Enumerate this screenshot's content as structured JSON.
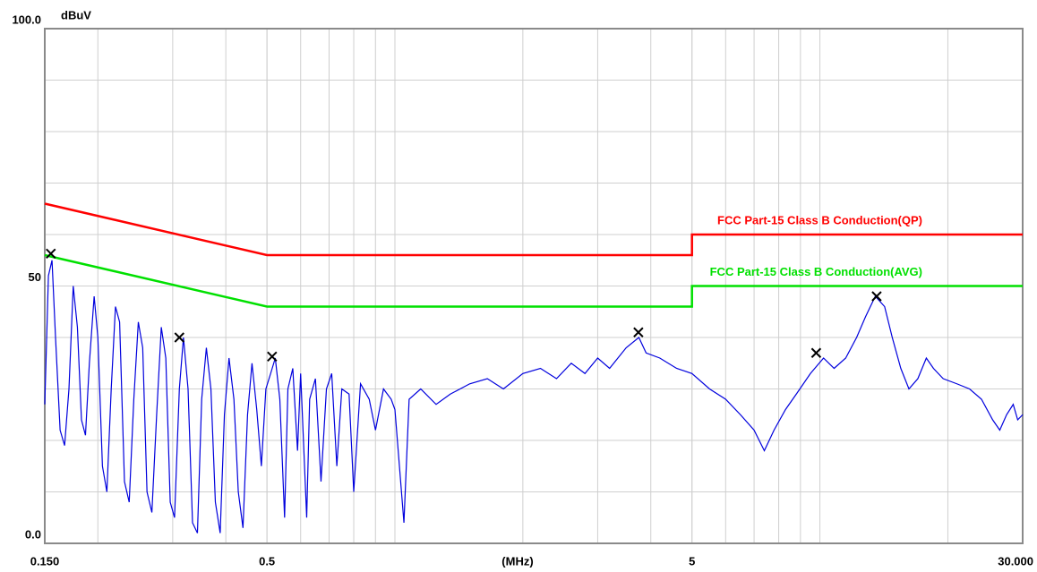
{
  "chart_data": {
    "type": "line",
    "y_unit": "dBuV",
    "x_label": "(MHz)",
    "log_x": true,
    "grid": true,
    "xlim": [
      0.15,
      30
    ],
    "xticks": [
      {
        "value": 0.15,
        "label": "0.150"
      },
      0.5,
      5,
      {
        "value": 30,
        "label": "30.000"
      }
    ],
    "ylim": [
      0,
      100
    ],
    "yticks": [
      {
        "value": 0,
        "label": "0.0"
      },
      50,
      {
        "value": 100,
        "label": "100.0"
      }
    ],
    "series": [
      {
        "name": "FCC Part-15 Class B Conduction(QP)",
        "color": "#ff0000",
        "x": [
          0.15,
          0.5,
          5,
          5,
          30
        ],
        "values": [
          66,
          56,
          56,
          60,
          60
        ]
      },
      {
        "name": "FCC Part-15 Class B Conduction(AVG)",
        "color": "#00e000",
        "x": [
          0.15,
          0.5,
          5,
          5,
          30
        ],
        "values": [
          56,
          46,
          46,
          50,
          50
        ]
      },
      {
        "color": "#0000dd",
        "x": [
          0.15,
          0.153,
          0.156,
          0.159,
          0.163,
          0.167,
          0.171,
          0.175,
          0.179,
          0.183,
          0.187,
          0.191,
          0.196,
          0.2,
          0.205,
          0.21,
          0.215,
          0.22,
          0.225,
          0.231,
          0.237,
          0.243,
          0.249,
          0.255,
          0.261,
          0.268,
          0.275,
          0.282,
          0.289,
          0.296,
          0.303,
          0.311,
          0.318,
          0.326,
          0.334,
          0.343,
          0.351,
          0.36,
          0.369,
          0.378,
          0.388,
          0.397,
          0.407,
          0.418,
          0.428,
          0.439,
          0.45,
          0.461,
          0.473,
          0.485,
          0.497,
          0.51,
          0.523,
          0.536,
          0.55,
          0.56,
          0.575,
          0.59,
          0.6,
          0.62,
          0.63,
          0.65,
          0.67,
          0.69,
          0.71,
          0.73,
          0.75,
          0.78,
          0.8,
          0.83,
          0.87,
          0.9,
          0.94,
          0.98,
          1.0,
          1.05,
          1.08,
          1.15,
          1.25,
          1.35,
          1.5,
          1.65,
          1.8,
          2.0,
          2.2,
          2.4,
          2.6,
          2.8,
          3.0,
          3.2,
          3.5,
          3.75,
          3.9,
          4.2,
          4.6,
          5.0,
          5.5,
          6.0,
          6.5,
          7.0,
          7.4,
          7.8,
          8.3,
          8.8,
          9.5,
          10.2,
          10.8,
          11.5,
          12.2,
          12.8,
          13.5,
          14.2,
          14.8,
          15.5,
          16.2,
          17,
          17.8,
          18.5,
          19.5,
          21,
          22.5,
          24,
          25.5,
          26.5,
          27.5,
          28.5,
          29.2,
          30
        ],
        "values": [
          27,
          52,
          55,
          40,
          22,
          19,
          30,
          50,
          42,
          24,
          21,
          35,
          48,
          40,
          15,
          10,
          30,
          46,
          43,
          12,
          8,
          28,
          43,
          38,
          10,
          6,
          25,
          42,
          36,
          8,
          5,
          30,
          40,
          30,
          4,
          2,
          28,
          38,
          30,
          8,
          2,
          25,
          36,
          28,
          10,
          3,
          25,
          35,
          26,
          15,
          30,
          33,
          36,
          28,
          5,
          30,
          34,
          18,
          33,
          5,
          28,
          32,
          12,
          30,
          33,
          15,
          30,
          29,
          10,
          31,
          28,
          22,
          30,
          28,
          26,
          4,
          28,
          30,
          27,
          29,
          31,
          32,
          30,
          33,
          34,
          32,
          35,
          33,
          36,
          34,
          38,
          40,
          37,
          36,
          34,
          33,
          30,
          28,
          25,
          22,
          18,
          22,
          26,
          29,
          33,
          36,
          34,
          36,
          40,
          44,
          48,
          46,
          40,
          34,
          30,
          32,
          36,
          34,
          32,
          31,
          30,
          28,
          24,
          22,
          25,
          27,
          24,
          25
        ]
      },
      {
        "color": "#000000",
        "x": [
          0.155,
          0.311,
          0.514,
          3.74,
          9.8,
          13.6
        ],
        "values": [
          56.3,
          40.0,
          36.3,
          41.0,
          37.0,
          48.0
        ]
      }
    ]
  }
}
